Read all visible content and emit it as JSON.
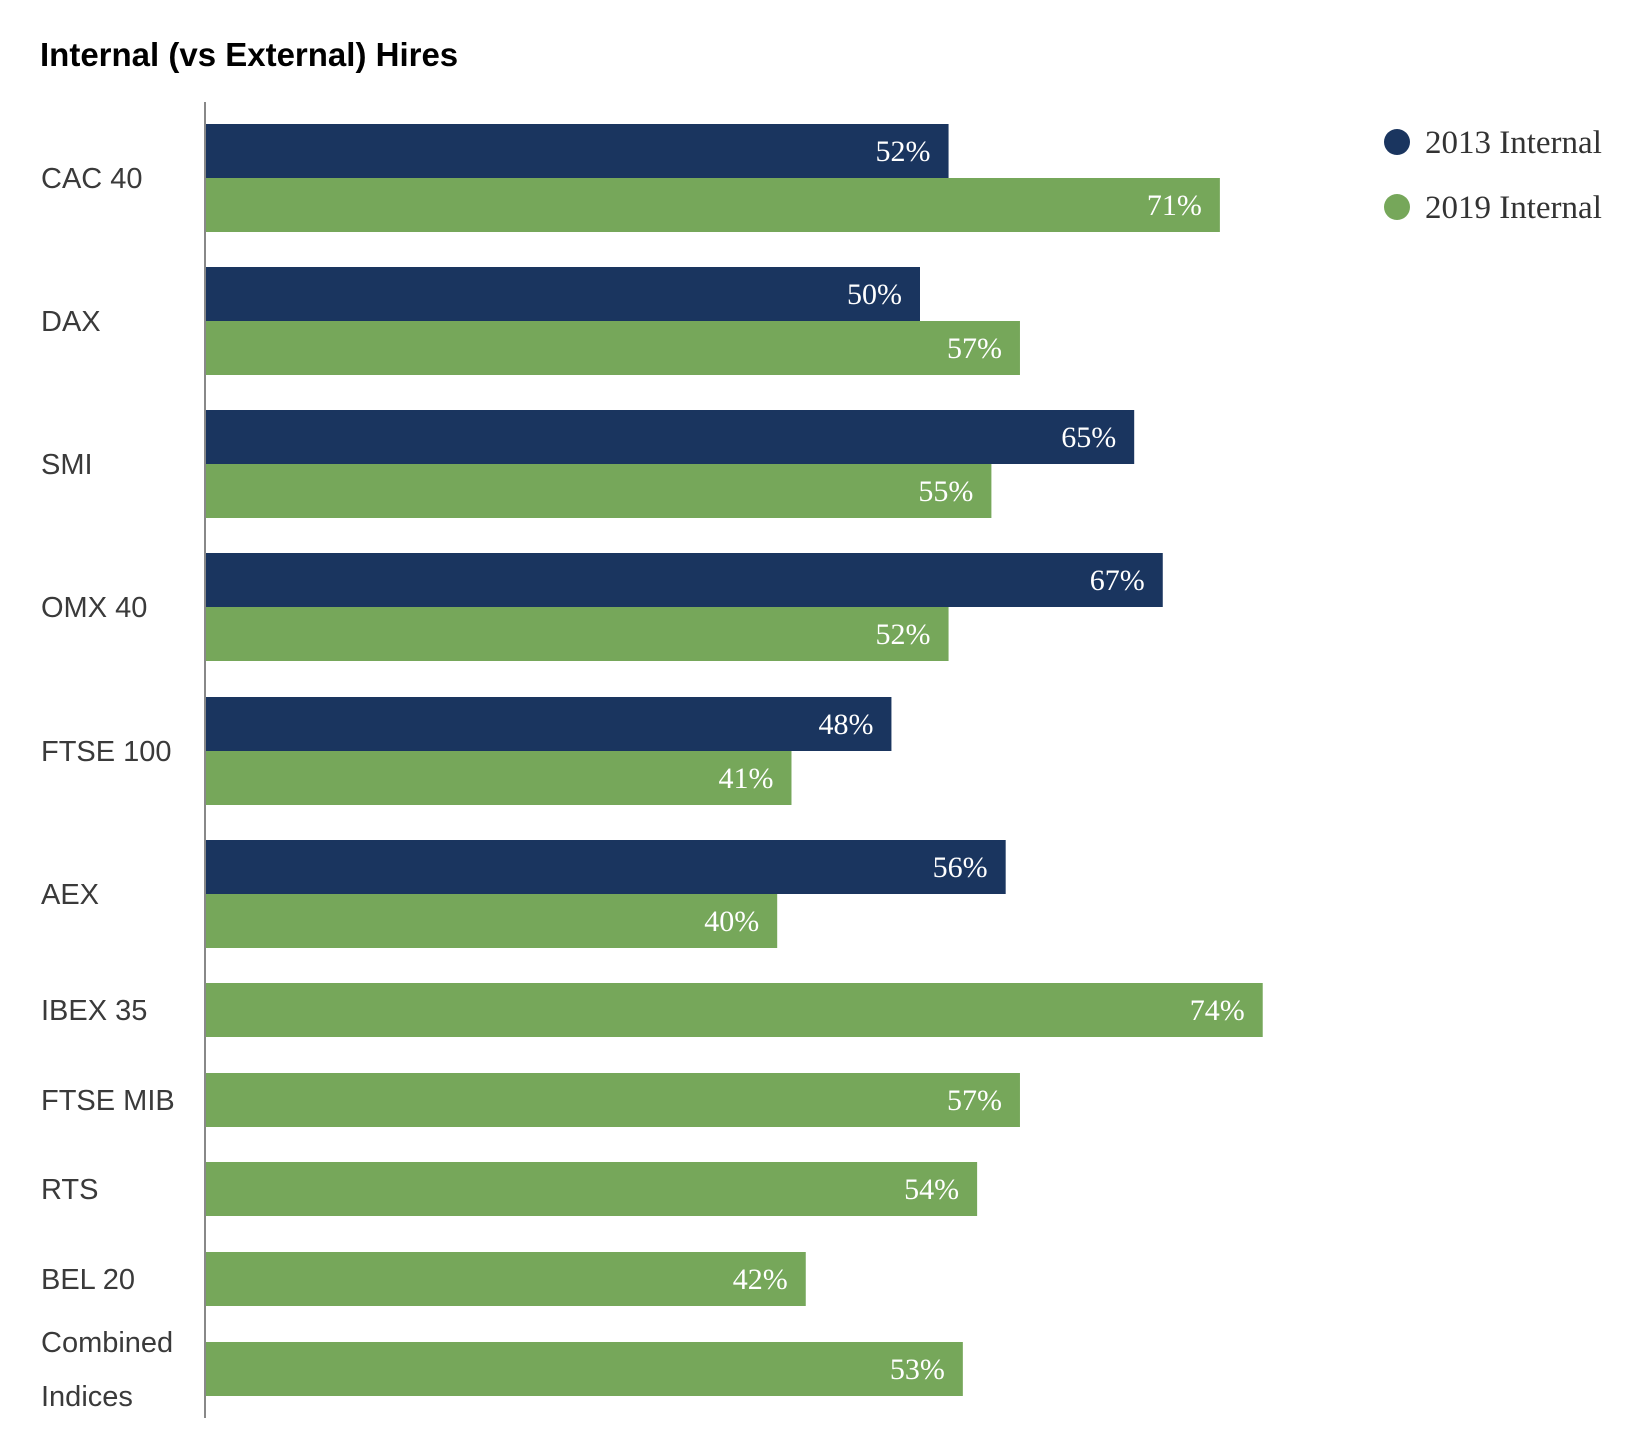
{
  "chart_data": {
    "type": "bar",
    "orientation": "horizontal",
    "title": "Internal (vs External) Hires",
    "xlabel": "",
    "ylabel": "",
    "xlim": [
      0,
      100
    ],
    "grid": false,
    "legend_position": "top-right",
    "value_suffix": "%",
    "categories": [
      [
        "CAC 40"
      ],
      [
        "DAX"
      ],
      [
        "SMI"
      ],
      [
        "OMX 40"
      ],
      [
        "FTSE 100"
      ],
      [
        "AEX"
      ],
      [
        "IBEX 35"
      ],
      [
        "FTSE MIB"
      ],
      [
        "RTS"
      ],
      [
        "BEL 20"
      ],
      [
        "Combined",
        "Indices"
      ]
    ],
    "series": [
      {
        "name": "2013 Internal",
        "color": "#1a355f",
        "values": [
          52,
          50,
          65,
          67,
          48,
          56,
          null,
          null,
          null,
          null,
          null
        ]
      },
      {
        "name": "2019 Internal",
        "color": "#76a75a",
        "values": [
          71,
          57,
          55,
          52,
          41,
          40,
          74,
          57,
          54,
          42,
          53
        ]
      }
    ],
    "value_labels": {
      "2013 Internal": [
        "52%",
        "50%",
        "65%",
        "67%",
        "48%",
        "56%",
        null,
        null,
        null,
        null,
        null
      ],
      "2019 Internal": [
        "71%",
        "57%",
        "55%",
        "52%",
        "41%",
        "40%",
        "74%",
        "57%",
        "54%",
        "42%",
        "53%"
      ]
    }
  },
  "colors": {
    "axis": "#888888",
    "label_text": "#3a3a3a"
  }
}
